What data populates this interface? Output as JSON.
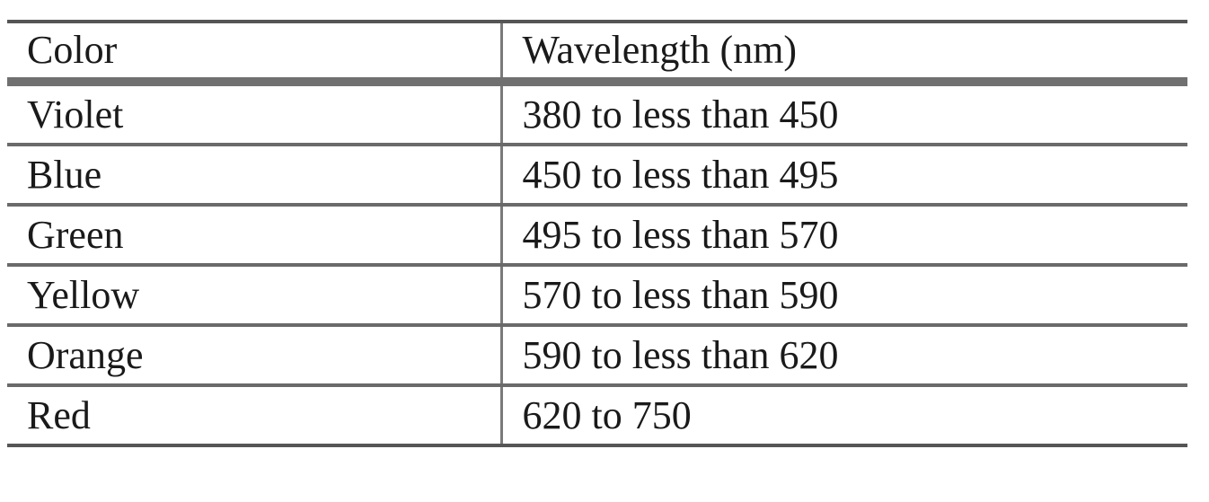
{
  "table": {
    "headers": {
      "color": "Color",
      "wavelength": "Wavelength (nm)"
    },
    "rows": [
      {
        "color": "Violet",
        "wavelength": "380 to less than 450"
      },
      {
        "color": "Blue",
        "wavelength": "450 to less than 495"
      },
      {
        "color": "Green",
        "wavelength": "495 to less than 570"
      },
      {
        "color": "Yellow",
        "wavelength": "570 to less than 590"
      },
      {
        "color": "Orange",
        "wavelength": "590 to less than 620"
      },
      {
        "color": "Red",
        "wavelength": "620 to 750"
      }
    ]
  }
}
